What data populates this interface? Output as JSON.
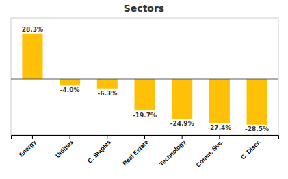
{
  "chart_data": {
    "type": "bar",
    "title": "Sectors",
    "categories": [
      "Energy",
      "Utilities",
      "C. Staples",
      "Real Estate",
      "Technology",
      "Comm. Svc.",
      "C. Discr."
    ],
    "values": [
      28.3,
      -4.0,
      -6.3,
      -19.7,
      -24.9,
      -27.4,
      -28.5
    ],
    "value_labels": [
      "28.3%",
      "-4.0%",
      "-6.3%",
      "-19.7%",
      "-24.9%",
      "-27.4%",
      "-28.5%"
    ],
    "color": "#FFC107",
    "ylim": [
      -35,
      38
    ],
    "grid": false,
    "data_labels": true,
    "tick_labels": "x"
  }
}
